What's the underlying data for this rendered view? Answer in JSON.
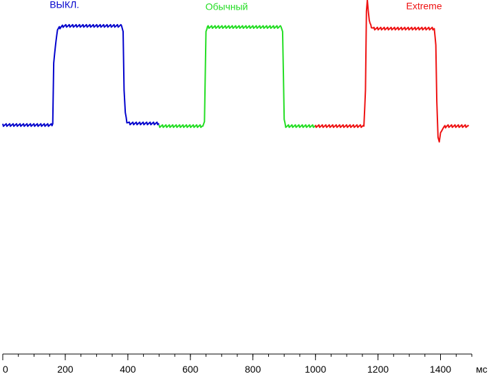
{
  "chart_data": {
    "type": "line",
    "xlim": [
      0,
      1500
    ],
    "ylim": [
      0,
      1
    ],
    "grid": false,
    "xlabel": "",
    "ylabel": "",
    "unit_label": "мс",
    "x_ticks": [
      0,
      200,
      400,
      600,
      800,
      1000,
      1200,
      1400
    ],
    "x_minor_step": 50,
    "series": [
      {
        "name": "ВЫКЛ.",
        "color": "#0000cc",
        "label_at": [
          150,
          0.965
        ],
        "points": [
          [
            0,
            0.445
          ],
          [
            155,
            0.445
          ],
          [
            160,
            0.45
          ],
          [
            163,
            0.72
          ],
          [
            168,
            0.79
          ],
          [
            175,
            0.87
          ],
          [
            185,
            0.88
          ],
          [
            195,
            0.885
          ],
          [
            380,
            0.885
          ],
          [
            385,
            0.86
          ],
          [
            388,
            0.6
          ],
          [
            392,
            0.5
          ],
          [
            397,
            0.46
          ],
          [
            405,
            0.452
          ],
          [
            500,
            0.452
          ]
        ]
      },
      {
        "name": "Обычный",
        "color": "#22dd22",
        "label_at": [
          648,
          0.955
        ],
        "points": [
          [
            500,
            0.44
          ],
          [
            640,
            0.44
          ],
          [
            645,
            0.46
          ],
          [
            650,
            0.86
          ],
          [
            655,
            0.88
          ],
          [
            890,
            0.88
          ],
          [
            895,
            0.86
          ],
          [
            900,
            0.47
          ],
          [
            905,
            0.44
          ],
          [
            1000,
            0.44
          ]
        ]
      },
      {
        "name": "Extreme",
        "color": "#ee1111",
        "label_at": [
          1290,
          0.958
        ],
        "points": [
          [
            1000,
            0.44
          ],
          [
            1155,
            0.44
          ],
          [
            1160,
            0.6
          ],
          [
            1163,
            0.95
          ],
          [
            1166,
            1.0
          ],
          [
            1169,
            0.95
          ],
          [
            1172,
            0.91
          ],
          [
            1177,
            0.885
          ],
          [
            1185,
            0.873
          ],
          [
            1380,
            0.873
          ],
          [
            1385,
            0.8
          ],
          [
            1388,
            0.55
          ],
          [
            1392,
            0.39
          ],
          [
            1396,
            0.37
          ],
          [
            1400,
            0.41
          ],
          [
            1410,
            0.435
          ],
          [
            1420,
            0.44
          ],
          [
            1490,
            0.44
          ]
        ]
      }
    ]
  }
}
